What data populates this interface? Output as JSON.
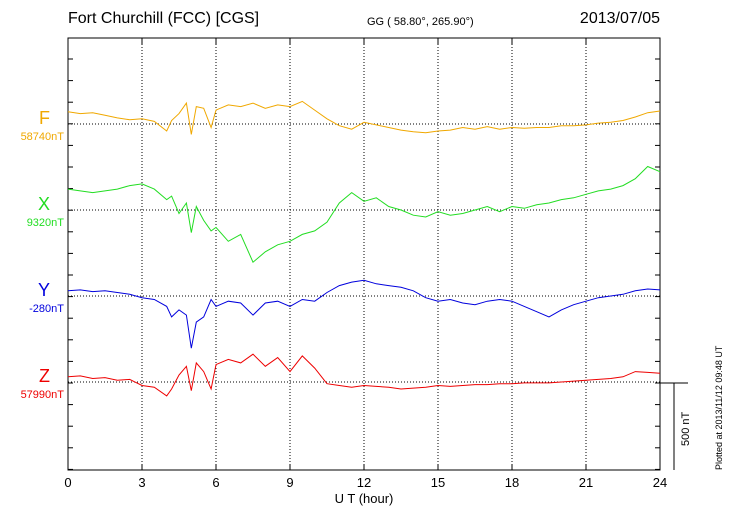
{
  "header": {
    "station": "Fort Churchill (FCC)  [CGS]",
    "coords": "GG ( 58.80°, 265.90°)",
    "date": "2013/07/05"
  },
  "plotted_note": "Plotted at 2013/11/12 09:48 UT",
  "scale_bar": {
    "label": "500 nT",
    "value_nT": 500
  },
  "chart_data": {
    "type": "line",
    "xlabel": "U T (hour)",
    "xlim": [
      0,
      24
    ],
    "xticks": [
      "0",
      "3",
      "6",
      "9",
      "12",
      "15",
      "18",
      "21",
      "24"
    ],
    "grid": true,
    "units_per_panel": "nT",
    "series": [
      {
        "name": "F",
        "baseline_label": "58740nT",
        "color": "#f0a800",
        "x": [
          0,
          0.5,
          1,
          1.5,
          2,
          2.5,
          3,
          3.5,
          4,
          4.2,
          4.5,
          4.8,
          5,
          5.2,
          5.5,
          5.8,
          6,
          6.5,
          7,
          7.5,
          8,
          8.5,
          9,
          9.5,
          10,
          10.5,
          11,
          11.5,
          12,
          12.5,
          13,
          13.5,
          14,
          14.5,
          15,
          15.5,
          16,
          16.5,
          17,
          17.5,
          18,
          18.5,
          19,
          19.5,
          20,
          20.5,
          21,
          21.5,
          22,
          22.5,
          23,
          23.5,
          24
        ],
        "y": [
          70,
          60,
          65,
          50,
          35,
          25,
          30,
          15,
          -40,
          20,
          60,
          120,
          -60,
          100,
          90,
          -20,
          80,
          110,
          100,
          120,
          90,
          110,
          100,
          130,
          80,
          30,
          -10,
          -30,
          10,
          -5,
          -20,
          -35,
          -45,
          -50,
          -40,
          -35,
          -20,
          -30,
          -15,
          -30,
          -20,
          -25,
          -20,
          -20,
          -10,
          -10,
          -5,
          5,
          10,
          20,
          40,
          65,
          75
        ]
      },
      {
        "name": "X",
        "baseline_label": "9320nT",
        "color": "#22dd22",
        "x": [
          0,
          0.5,
          1,
          1.5,
          2,
          2.5,
          3,
          3.5,
          4,
          4.2,
          4.5,
          4.8,
          5,
          5.2,
          5.5,
          5.8,
          6,
          6.5,
          7,
          7.5,
          8,
          8.5,
          9,
          9.5,
          10,
          10.5,
          11,
          11.5,
          12,
          12.5,
          13,
          13.5,
          14,
          14.5,
          15,
          15.5,
          16,
          16.5,
          17,
          17.5,
          18,
          18.5,
          19,
          19.5,
          20,
          20.5,
          21,
          21.5,
          22,
          22.5,
          23,
          23.5,
          24
        ],
        "y": [
          120,
          110,
          100,
          110,
          120,
          140,
          150,
          120,
          60,
          80,
          -20,
          40,
          -130,
          20,
          -60,
          -120,
          -100,
          -180,
          -140,
          -300,
          -240,
          -200,
          -180,
          -140,
          -120,
          -70,
          40,
          100,
          50,
          70,
          20,
          0,
          -30,
          -40,
          -10,
          -30,
          -20,
          0,
          20,
          -10,
          20,
          10,
          30,
          40,
          60,
          70,
          90,
          110,
          120,
          140,
          180,
          250,
          220
        ]
      },
      {
        "name": "Y",
        "baseline_label": "-280nT",
        "color": "#0000dd",
        "x": [
          0,
          0.5,
          1,
          1.5,
          2,
          2.5,
          3,
          3.5,
          4,
          4.2,
          4.5,
          4.8,
          5,
          5.2,
          5.5,
          5.8,
          6,
          6.5,
          7,
          7.5,
          8,
          8.5,
          9,
          9.5,
          10,
          10.5,
          11,
          11.5,
          12,
          12.5,
          13,
          13.5,
          14,
          14.5,
          15,
          15.5,
          16,
          16.5,
          17,
          17.5,
          18,
          18.5,
          19,
          19.5,
          20,
          20.5,
          21,
          21.5,
          22,
          22.5,
          23,
          23.5,
          24
        ],
        "y": [
          30,
          35,
          25,
          30,
          20,
          10,
          -10,
          -20,
          -60,
          -120,
          -80,
          -110,
          -300,
          -150,
          -120,
          -20,
          -60,
          -30,
          -40,
          -110,
          -40,
          -30,
          -60,
          -20,
          -30,
          20,
          60,
          80,
          90,
          70,
          60,
          50,
          30,
          -10,
          -30,
          -20,
          -40,
          -50,
          -30,
          -20,
          -30,
          -60,
          -90,
          -120,
          -80,
          -50,
          -30,
          -10,
          0,
          10,
          30,
          40,
          35
        ]
      },
      {
        "name": "Z",
        "baseline_label": "57990nT",
        "color": "#ee0000",
        "x": [
          0,
          0.5,
          1,
          1.5,
          2,
          2.5,
          3,
          3.5,
          4,
          4.2,
          4.5,
          4.8,
          5,
          5.2,
          5.5,
          5.8,
          6,
          6.5,
          7,
          7.5,
          8,
          8.5,
          9,
          9.5,
          10,
          10.5,
          11,
          11.5,
          12,
          12.5,
          13,
          13.5,
          14,
          14.5,
          15,
          15.5,
          16,
          16.5,
          17,
          17.5,
          18,
          18.5,
          19,
          19.5,
          20,
          20.5,
          21,
          21.5,
          22,
          22.5,
          23,
          23.5,
          24
        ],
        "y": [
          30,
          35,
          20,
          25,
          10,
          15,
          -20,
          -30,
          -80,
          -40,
          40,
          90,
          -50,
          110,
          60,
          -40,
          100,
          130,
          110,
          160,
          90,
          140,
          60,
          150,
          80,
          -10,
          -20,
          -30,
          -20,
          -25,
          -30,
          -40,
          -35,
          -30,
          -20,
          -25,
          -20,
          -15,
          -15,
          -10,
          -10,
          -5,
          -5,
          -5,
          0,
          5,
          10,
          15,
          20,
          30,
          60,
          55,
          50
        ]
      }
    ]
  }
}
